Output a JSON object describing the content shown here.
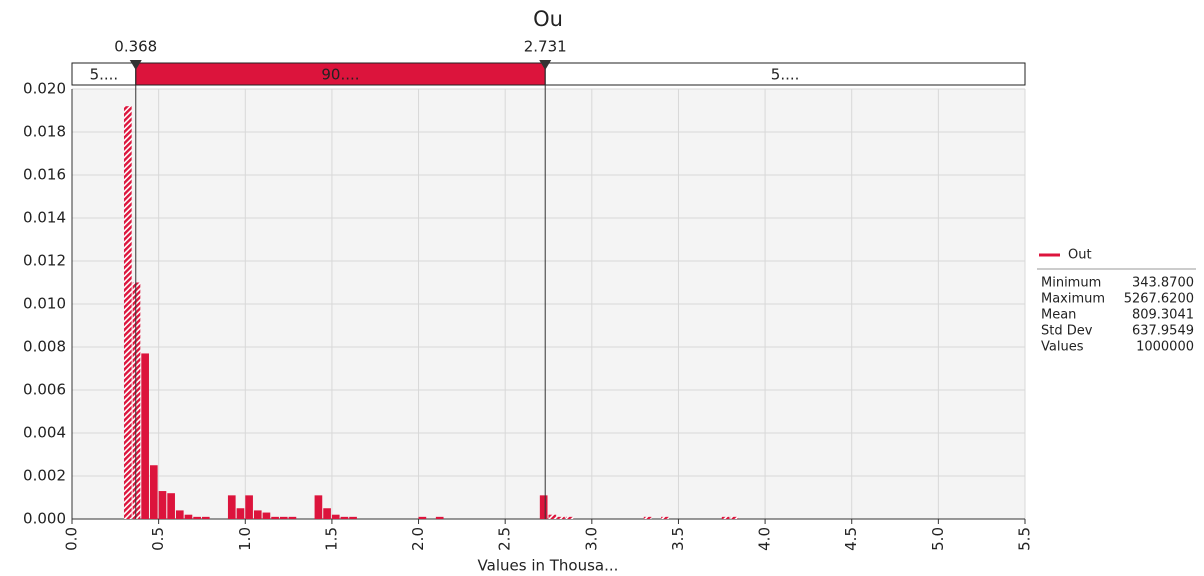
{
  "chart_data": {
    "type": "histogram",
    "title": "Ou",
    "x_label": "Values in Thousa...",
    "color": "#dc143c",
    "grid": true,
    "bins": [
      0.3,
      0.35,
      0.4,
      0.45,
      0.5,
      0.55,
      0.6,
      0.65,
      0.7,
      0.75,
      0.8,
      0.85,
      0.9,
      0.95,
      1.0,
      1.05,
      1.1,
      1.15,
      1.2,
      1.25,
      1.3,
      1.35,
      1.4,
      1.45,
      1.5,
      1.55,
      1.6,
      1.65,
      1.7,
      1.75,
      1.8,
      1.85,
      1.9,
      1.95,
      2.0,
      2.05,
      2.1,
      2.15,
      2.2,
      2.25,
      2.3,
      2.35,
      2.4,
      2.45,
      2.5,
      2.55,
      2.6,
      2.65,
      2.7,
      2.75,
      2.8,
      2.85,
      2.9,
      2.95,
      3.0,
      3.05,
      3.1,
      3.15,
      3.2,
      3.25,
      3.3,
      3.35,
      3.4,
      3.45,
      3.5,
      3.55,
      3.6,
      3.65,
      3.7,
      3.75,
      3.8,
      3.85
    ],
    "values": [
      0.0192,
      0.011,
      0.0077,
      0.0025,
      0.0013,
      0.0012,
      0.0004,
      0.0002,
      0.0001,
      0.0001,
      0,
      0,
      0.0011,
      0.0005,
      0.0011,
      0.0004,
      0.0003,
      0.0001,
      0.0001,
      0.0001,
      0,
      0,
      0.0011,
      0.0005,
      0.0002,
      0.0001,
      0.0001,
      0,
      0,
      0,
      0,
      0,
      0,
      0,
      0.0001,
      0,
      0.0001,
      0,
      0,
      0,
      0,
      0,
      0,
      0,
      0,
      0,
      0,
      0,
      0.0011,
      0.0002,
      0.0001,
      0.0001,
      0,
      0,
      0,
      0,
      0,
      0,
      0,
      0,
      0.0001,
      0,
      0.0001,
      0,
      0,
      0,
      0,
      0,
      0,
      0.0001,
      0.0001
    ],
    "xlim": [
      0,
      5.5
    ],
    "xticks": [
      {
        "value": 0,
        "label": "0.0"
      },
      0.5,
      {
        "value": 1,
        "label": "1.0"
      },
      1.5,
      {
        "value": 2,
        "label": "2.0"
      },
      2.5,
      {
        "value": 3,
        "label": "3.0"
      },
      3.5,
      {
        "value": 4,
        "label": "4.0"
      },
      4.5,
      {
        "value": 5,
        "label": "5.0"
      },
      5.5
    ],
    "ylim": [
      0,
      0.02
    ],
    "yticks": [
      {
        "value": 0,
        "label": "0.000"
      },
      {
        "value": 0.002,
        "label": "0.002"
      },
      {
        "value": 0.004,
        "label": "0.004"
      },
      {
        "value": 0.006,
        "label": "0.006"
      },
      {
        "value": 0.008,
        "label": "0.008"
      },
      {
        "value": 0.01,
        "label": "0.010"
      },
      {
        "value": 0.012,
        "label": "0.012"
      },
      {
        "value": 0.014,
        "label": "0.014"
      },
      {
        "value": 0.016,
        "label": "0.016"
      },
      {
        "value": 0.018,
        "label": "0.018"
      },
      {
        "value": 0.02,
        "label": "0.020"
      }
    ],
    "delimiters": [
      0.368,
      2.731
    ],
    "regions": [
      "5....",
      "90....",
      "5...."
    ],
    "legend": "Out",
    "stats": [
      [
        "Minimum",
        "343.8700"
      ],
      [
        "Maximum",
        "5267.6200"
      ],
      [
        "Mean",
        "809.3041"
      ],
      [
        "Std Dev",
        "637.9549"
      ],
      [
        "Values",
        "1000000"
      ]
    ]
  }
}
